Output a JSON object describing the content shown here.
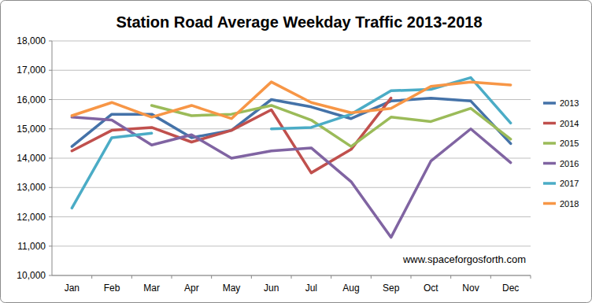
{
  "chart_data": {
    "type": "line",
    "title": "Station Road Average Weekday Traffic 2013-2018",
    "categories": [
      "Jan",
      "Feb",
      "Mar",
      "Apr",
      "May",
      "Jun",
      "Jul",
      "Aug",
      "Sep",
      "Oct",
      "Nov",
      "Dec"
    ],
    "series": [
      {
        "name": "2013",
        "color": "#4472a8",
        "values": [
          14400,
          15500,
          15500,
          14700,
          14950,
          16000,
          15750,
          15350,
          15950,
          16050,
          15950,
          14500
        ]
      },
      {
        "name": "2014",
        "color": "#c0504d",
        "values": [
          14250,
          14950,
          15050,
          14550,
          14950,
          15650,
          13500,
          14300,
          16050,
          null,
          null,
          null
        ]
      },
      {
        "name": "2015",
        "color": "#9bbb59",
        "values": [
          null,
          null,
          15800,
          15450,
          15500,
          15800,
          15300,
          14400,
          15400,
          15250,
          15700,
          14650
        ]
      },
      {
        "name": "2016",
        "color": "#8064a2",
        "values": [
          15400,
          15300,
          14450,
          14800,
          14000,
          14250,
          14350,
          13200,
          11300,
          13900,
          15000,
          13850
        ]
      },
      {
        "name": "2017",
        "color": "#4bacc6",
        "values": [
          12300,
          14700,
          14850,
          null,
          null,
          15000,
          15050,
          15500,
          16300,
          16350,
          16750,
          15200
        ]
      },
      {
        "name": "2018",
        "color": "#f79646",
        "values": [
          15450,
          15900,
          15400,
          15800,
          15350,
          16600,
          15900,
          15550,
          15700,
          16450,
          16600,
          16500
        ]
      }
    ],
    "ylim": [
      10000,
      18000
    ],
    "yticks": [
      {
        "value": 10000,
        "label": "10,000"
      },
      {
        "value": 11000,
        "label": "11,000"
      },
      {
        "value": 12000,
        "label": "12,000"
      },
      {
        "value": 13000,
        "label": "13,000"
      },
      {
        "value": 14000,
        "label": "14,000"
      },
      {
        "value": 15000,
        "label": "15,000"
      },
      {
        "value": 16000,
        "label": "16,000"
      },
      {
        "value": 17000,
        "label": "17,000"
      },
      {
        "value": 18000,
        "label": "18,000"
      }
    ],
    "grid": true,
    "legend": "right",
    "annotation": "www.spaceforgosforth.com"
  }
}
